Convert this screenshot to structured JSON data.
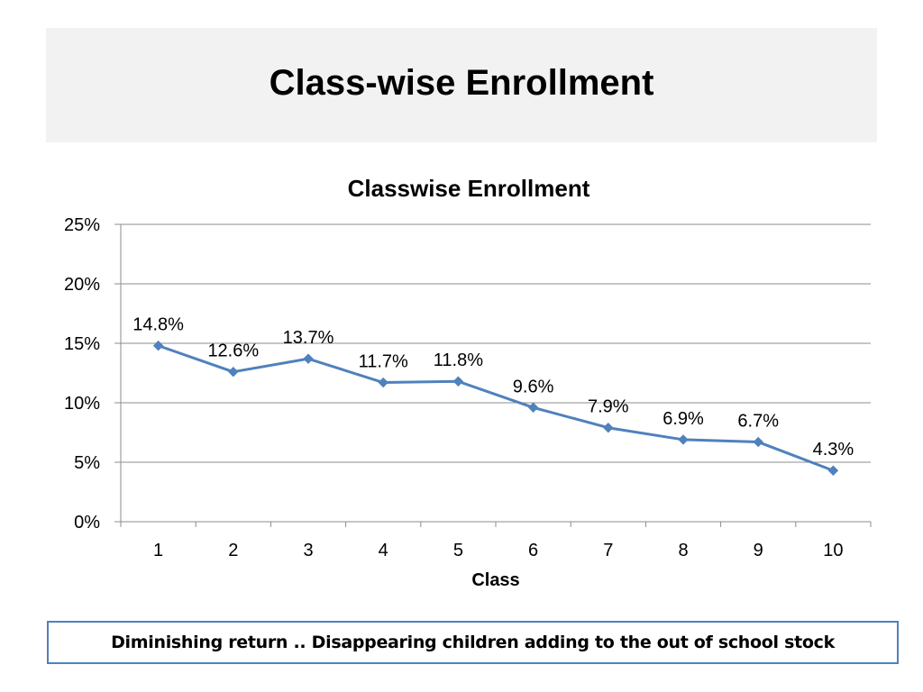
{
  "slide": {
    "title": "Class-wise Enrollment",
    "note": "Diminishing return ..  Disappearing children  adding to the out of school stock"
  },
  "colors": {
    "series": "#4f81bd",
    "title_band": "#f2f2f2",
    "note_border": "#4f81bd",
    "gridline": "#8c8c8c",
    "axis": "#8c8c8c"
  },
  "chart_data": {
    "type": "line",
    "title": "Classwise Enrollment",
    "xlabel": "Class",
    "ylabel": "",
    "categories": [
      "1",
      "2",
      "3",
      "4",
      "5",
      "6",
      "7",
      "8",
      "9",
      "10"
    ],
    "series": [
      {
        "values": [
          14.8,
          12.6,
          13.7,
          11.7,
          11.8,
          9.6,
          7.9,
          6.9,
          6.7,
          4.3
        ],
        "labels": [
          "14.8%",
          "12.6%",
          "13.7%",
          "11.7%",
          "11.8%",
          "9.6%",
          "7.9%",
          "6.9%",
          "6.7%",
          "4.3%"
        ],
        "marker": "diamond"
      }
    ],
    "ylim": [
      0,
      25
    ],
    "yticks": [
      0,
      5,
      10,
      15,
      20,
      25
    ],
    "ytick_labels": [
      "0%",
      "5%",
      "10%",
      "15%",
      "20%",
      "25%"
    ],
    "grid": "horizontal",
    "legend": "none"
  }
}
